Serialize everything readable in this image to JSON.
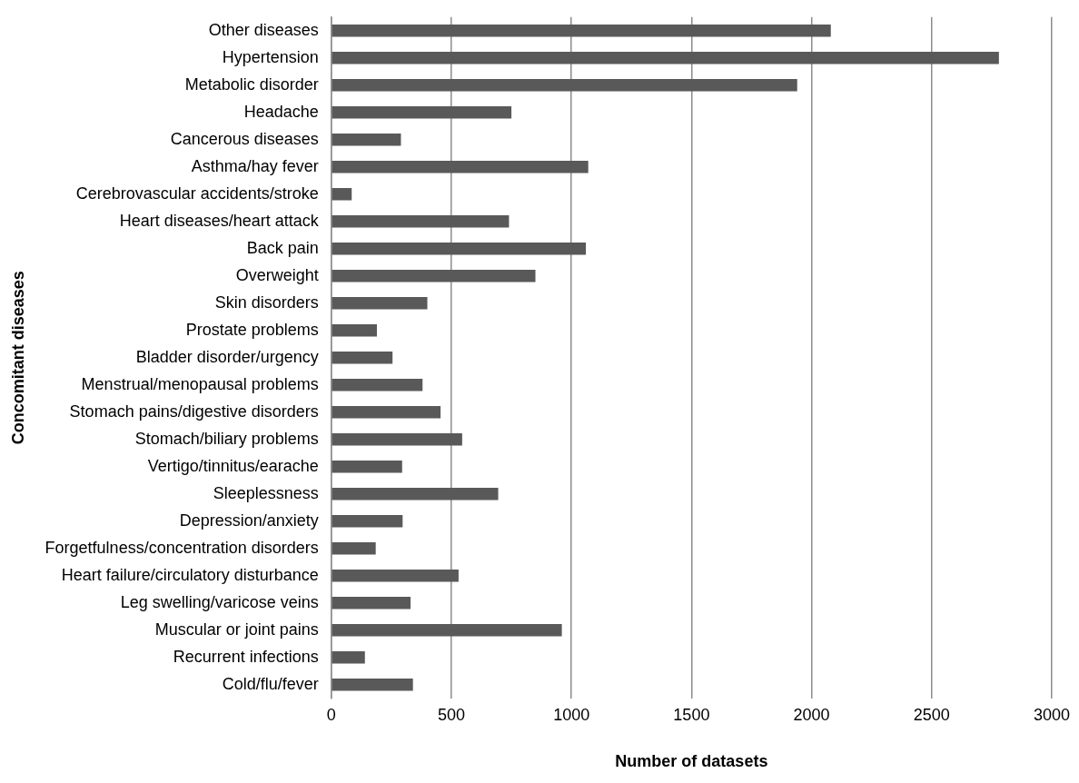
{
  "chart_data": {
    "type": "bar",
    "orientation": "horizontal",
    "xlabel": "Number of datasets",
    "ylabel": "Concomitant diseases",
    "categories": [
      "Other diseases",
      "Hypertension",
      "Metabolic disorder",
      "Headache",
      "Cancerous diseases",
      "Asthma/hay fever",
      "Cerebrovascular accidents/stroke",
      "Heart diseases/heart attack",
      "Back pain",
      "Overweight",
      "Skin disorders",
      "Prostate problems",
      "Bladder disorder/urgency",
      "Menstrual/menopausal problems",
      "Stomach pains/digestive disorders",
      "Stomach/biliary problems",
      "Vertigo/tinnitus/earache",
      "Sleeplessness",
      "Depression/anxiety",
      "Forgetfulness/concentration disorders",
      "Heart failure/circulatory disturbance",
      "Leg swelling/varicose veins",
      "Muscular or joint pains",
      "Recurrent infections",
      "Cold/flu/fever"
    ],
    "values": [
      2080,
      2780,
      1940,
      750,
      290,
      1070,
      85,
      740,
      1060,
      850,
      400,
      190,
      255,
      380,
      455,
      545,
      295,
      695,
      297,
      185,
      530,
      330,
      960,
      140,
      340
    ],
    "color": "#595959",
    "xlim": [
      0,
      3000
    ],
    "xticks": [
      0,
      500,
      1000,
      1500,
      2000,
      2500,
      3000
    ],
    "grid": "x"
  }
}
